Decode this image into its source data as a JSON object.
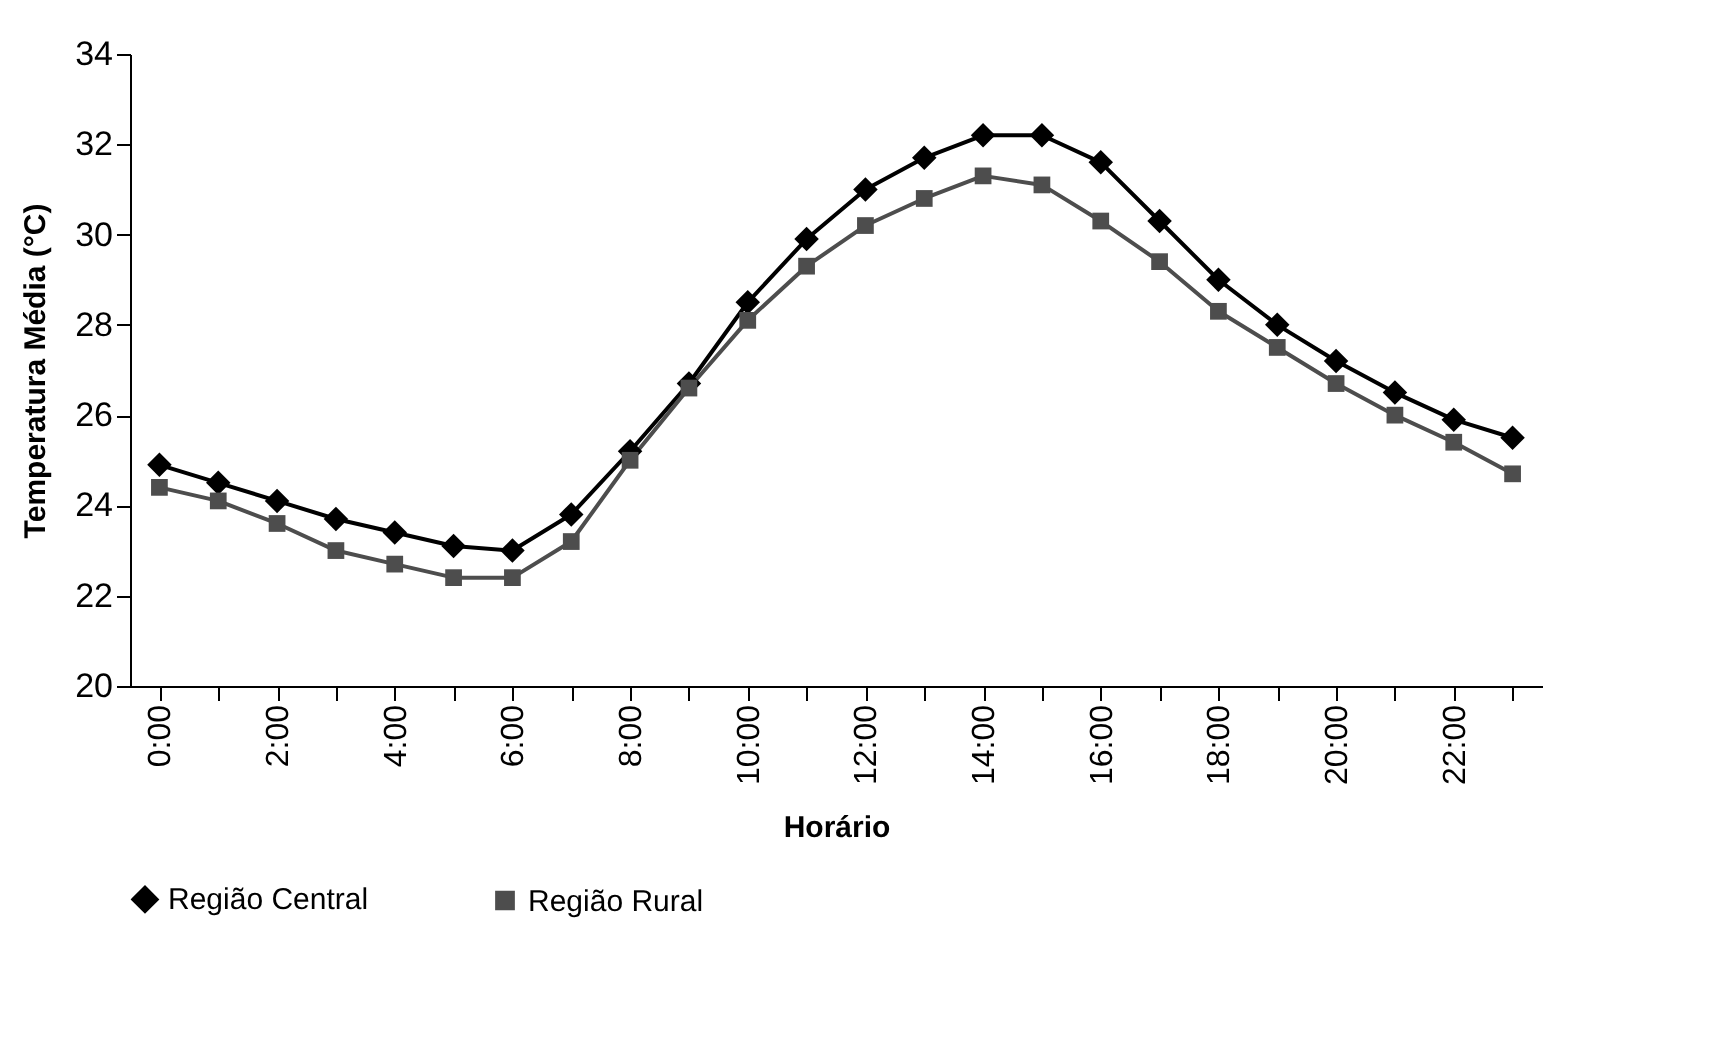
{
  "chart_data": {
    "type": "line",
    "xlabel": "Horário",
    "ylabel": "Temperatura Média (°C)",
    "categories": [
      "0:00",
      null,
      "2:00",
      null,
      "4:00",
      null,
      "6:00",
      null,
      "8:00",
      null,
      "10:00",
      null,
      "12:00",
      null,
      "14:00",
      null,
      "16:00",
      null,
      "18:00",
      null,
      "20:00",
      null,
      "22:00",
      null
    ],
    "series": [
      {
        "name": "Região Central",
        "color": "#000000",
        "marker": "diamond",
        "values": [
          24.9,
          24.5,
          24.1,
          23.7,
          23.4,
          23.1,
          23.0,
          23.8,
          25.2,
          26.7,
          28.5,
          29.9,
          31.0,
          31.7,
          32.2,
          32.2,
          31.6,
          30.3,
          29.0,
          28.0,
          27.2,
          26.5,
          25.9,
          25.5
        ]
      },
      {
        "name": "Região Rural",
        "color": "#4d4d4d",
        "marker": "square",
        "values": [
          24.4,
          24.1,
          23.6,
          23.0,
          22.7,
          22.4,
          22.4,
          23.2,
          25.0,
          26.6,
          28.1,
          29.3,
          30.2,
          30.8,
          31.3,
          31.1,
          30.3,
          29.4,
          28.3,
          27.5,
          26.7,
          26.0,
          25.4,
          24.7
        ]
      }
    ],
    "ylim": [
      20,
      34
    ],
    "yticks": [
      20,
      22,
      24,
      26,
      28,
      30,
      32,
      34
    ],
    "grid": false,
    "legend": "bottom",
    "line_style": "solid"
  }
}
